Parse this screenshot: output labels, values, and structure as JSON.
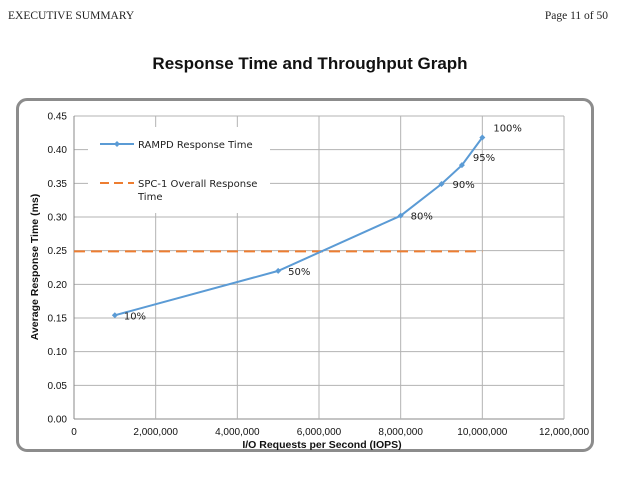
{
  "header": {
    "left": "EXECUTIVE SUMMARY",
    "right": "Page 11 of 50"
  },
  "chart_data": {
    "type": "line",
    "title": "Response Time and Throughput Graph",
    "xlabel": "I/O Requests per Second (IOPS)",
    "ylabel": "Average Response Time (ms)",
    "xlim": [
      0,
      12000000
    ],
    "ylim": [
      0,
      0.45
    ],
    "x_ticks": [
      0,
      2000000,
      4000000,
      6000000,
      8000000,
      10000000,
      12000000
    ],
    "x_tick_labels": [
      "0",
      "2,000,000",
      "4,000,000",
      "6,000,000",
      "8,000,000",
      "10,000,000",
      "12,000,000"
    ],
    "y_ticks": [
      0,
      0.05,
      0.1,
      0.15,
      0.2,
      0.25,
      0.3,
      0.35,
      0.4,
      0.45
    ],
    "y_tick_labels": [
      "0.00",
      "0.05",
      "0.10",
      "0.15",
      "0.20",
      "0.25",
      "0.30",
      "0.35",
      "0.40",
      "0.45"
    ],
    "grid": true,
    "legend_position": "top-left",
    "series": [
      {
        "name": "RAMPD Response Time",
        "style": "line-with-markers",
        "color": "#5b9bd5",
        "x": [
          1000000,
          5000000,
          8000000,
          9000000,
          9500000,
          10000000
        ],
        "y": [
          0.154,
          0.22,
          0.302,
          0.349,
          0.377,
          0.418
        ],
        "labels": [
          "10%",
          "50%",
          "80%",
          "90%",
          "95%",
          "100%"
        ]
      },
      {
        "name": "SPC-1 Overall Response Time",
        "style": "dashed",
        "color": "#ed7d31",
        "x": [
          0,
          10000000
        ],
        "y": [
          0.249,
          0.249
        ]
      }
    ]
  }
}
